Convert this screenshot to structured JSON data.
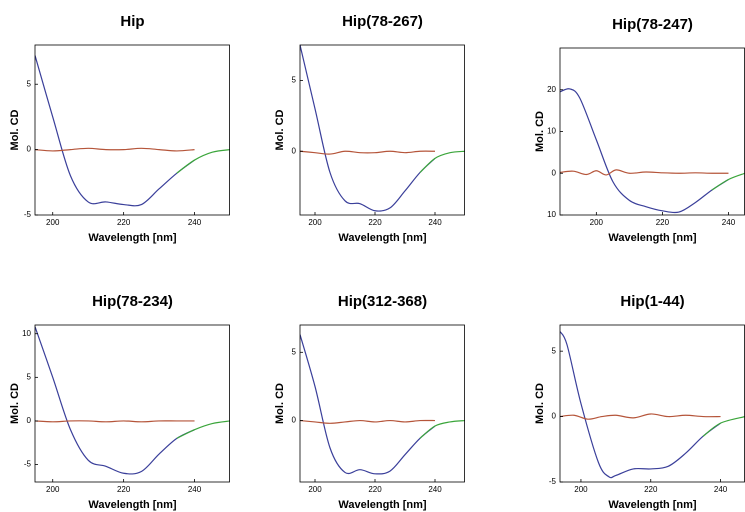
{
  "chart_data": [
    {
      "type": "line",
      "title": "Hip",
      "xlabel": "Wavelength [nm]",
      "ylabel": "Mol. CD",
      "xlim": [
        195,
        250
      ],
      "ylim": [
        -5,
        8
      ],
      "xticks": [
        200,
        220,
        240
      ],
      "yticks": [
        -5,
        0,
        5
      ],
      "series": [
        {
          "color": "#3a3f9a",
          "x": [
            195,
            200,
            205,
            210,
            215,
            220,
            225,
            230,
            235,
            240
          ],
          "values": [
            7.2,
            2.5,
            -2,
            -4,
            -4,
            -4.2,
            -4.2,
            -3,
            -1.8,
            -0.8
          ]
        },
        {
          "color": "#3aa53a",
          "x": [
            235,
            240,
            245,
            250
          ],
          "values": [
            -1.8,
            -0.8,
            -0.2,
            0
          ]
        },
        {
          "color": "#b5553a",
          "x": [
            195,
            200,
            205,
            210,
            215,
            220,
            225,
            230,
            235,
            240
          ],
          "values": [
            0,
            -0.1,
            0,
            0.1,
            0,
            0,
            0.1,
            0,
            -0.1,
            0
          ]
        }
      ]
    },
    {
      "type": "line",
      "title": "Hip(78-267)",
      "xlabel": "Wavelength [nm]",
      "ylabel": "Mol. CD",
      "xlim": [
        195,
        250
      ],
      "ylim": [
        -4.5,
        7.5
      ],
      "xticks": [
        200,
        220,
        240
      ],
      "yticks": [
        0,
        5
      ],
      "series": [
        {
          "color": "#3a3f9a",
          "x": [
            195,
            200,
            205,
            210,
            215,
            220,
            225,
            230,
            235,
            240
          ],
          "values": [
            7.5,
            3,
            -1.5,
            -3.5,
            -3.7,
            -4.2,
            -4,
            -2.8,
            -1.5,
            -0.5
          ]
        },
        {
          "color": "#3aa53a",
          "x": [
            235,
            240,
            245,
            250
          ],
          "values": [
            -1.5,
            -0.5,
            -0.1,
            0
          ]
        },
        {
          "color": "#b5553a",
          "x": [
            195,
            200,
            205,
            210,
            215,
            220,
            225,
            230,
            235,
            240
          ],
          "values": [
            0,
            -0.1,
            -0.2,
            0,
            -0.1,
            -0.1,
            0,
            -0.1,
            0,
            0
          ]
        }
      ]
    },
    {
      "type": "line",
      "title": "Hip(78-247)",
      "xlabel": "Wavelength [nm]",
      "ylabel": "Mol. CD",
      "xlim": [
        189,
        245
      ],
      "ylim": [
        -10,
        30
      ],
      "xticks": [
        200,
        220,
        240
      ],
      "yticks": [
        {
          "value": -10,
          "label": "10"
        },
        0,
        10,
        20
      ],
      "series": [
        {
          "color": "#3a3f9a",
          "x": [
            189,
            192,
            195,
            200,
            205,
            210,
            215,
            220,
            225,
            230,
            235,
            240
          ],
          "values": [
            19.5,
            20.2,
            18,
            8,
            -2,
            -6.5,
            -8,
            -9,
            -9.3,
            -7,
            -4,
            -1.5
          ]
        },
        {
          "color": "#3aa53a",
          "x": [
            235,
            240,
            245
          ],
          "values": [
            -4,
            -1.5,
            0
          ]
        },
        {
          "color": "#b5553a",
          "x": [
            189,
            193,
            197,
            200,
            203,
            206,
            210,
            215,
            220,
            225,
            230,
            235,
            240
          ],
          "values": [
            0.2,
            0.5,
            -0.3,
            0.6,
            -0.4,
            0.8,
            0,
            0.3,
            0.1,
            0,
            0.1,
            0,
            0
          ]
        }
      ]
    },
    {
      "type": "line",
      "title": "Hip(78-234)",
      "xlabel": "Wavelength [nm]",
      "ylabel": "Mol. CD",
      "xlim": [
        195,
        250
      ],
      "ylim": [
        -7,
        11
      ],
      "xticks": [
        200,
        220,
        240
      ],
      "yticks": [
        -5,
        0,
        5,
        10
      ],
      "series": [
        {
          "color": "#3a3f9a",
          "x": [
            195,
            200,
            205,
            210,
            215,
            220,
            225,
            230,
            235,
            240
          ],
          "values": [
            10.8,
            5,
            -1,
            -4.5,
            -5.2,
            -6,
            -5.8,
            -3.8,
            -2,
            -1
          ]
        },
        {
          "color": "#3aa53a",
          "x": [
            235,
            240,
            245,
            250
          ],
          "values": [
            -2,
            -1,
            -0.3,
            0
          ]
        },
        {
          "color": "#b5553a",
          "x": [
            195,
            200,
            205,
            210,
            215,
            220,
            225,
            230,
            235,
            240
          ],
          "values": [
            0,
            -0.1,
            0,
            0,
            -0.1,
            0,
            -0.1,
            0,
            0,
            0
          ]
        }
      ]
    },
    {
      "type": "line",
      "title": "Hip(312-368)",
      "xlabel": "Wavelength [nm]",
      "ylabel": "Mol. CD",
      "xlim": [
        195,
        250
      ],
      "ylim": [
        -4.5,
        7
      ],
      "xticks": [
        200,
        220,
        240
      ],
      "yticks": [
        0,
        5
      ],
      "series": [
        {
          "color": "#3a3f9a",
          "x": [
            195,
            200,
            205,
            210,
            215,
            220,
            225,
            230,
            235,
            240
          ],
          "values": [
            6.3,
            2.5,
            -2,
            -3.8,
            -3.6,
            -3.9,
            -3.7,
            -2.5,
            -1.3,
            -0.4
          ]
        },
        {
          "color": "#3aa53a",
          "x": [
            235,
            240,
            245,
            250
          ],
          "values": [
            -1.3,
            -0.4,
            -0.1,
            0
          ]
        },
        {
          "color": "#b5553a",
          "x": [
            195,
            200,
            205,
            210,
            215,
            220,
            225,
            230,
            235,
            240
          ],
          "values": [
            0,
            -0.1,
            -0.2,
            -0.1,
            0,
            -0.1,
            0,
            -0.1,
            0,
            0
          ]
        }
      ]
    },
    {
      "type": "line",
      "title": "Hip(1-44)",
      "xlabel": "Wavelength [nm]",
      "ylabel": "Mol. CD",
      "xlim": [
        194,
        247
      ],
      "ylim": [
        -5,
        7
      ],
      "xticks": [
        200,
        220,
        240
      ],
      "yticks": [
        -5,
        0,
        5
      ],
      "series": [
        {
          "color": "#3a3f9a",
          "x": [
            194,
            196,
            200,
            205,
            208,
            210,
            215,
            220,
            225,
            230,
            235,
            240
          ],
          "values": [
            6.5,
            5.5,
            1,
            -3.5,
            -4.6,
            -4.5,
            -4,
            -4,
            -3.8,
            -2.8,
            -1.5,
            -0.5
          ]
        },
        {
          "color": "#3aa53a",
          "x": [
            235,
            240,
            247
          ],
          "values": [
            -1.5,
            -0.5,
            0
          ]
        },
        {
          "color": "#b5553a",
          "x": [
            194,
            198,
            202,
            206,
            210,
            215,
            220,
            225,
            230,
            235,
            240
          ],
          "values": [
            0,
            0.1,
            -0.2,
            0,
            0.1,
            -0.1,
            0.2,
            0,
            0.1,
            0,
            0
          ]
        }
      ]
    }
  ]
}
